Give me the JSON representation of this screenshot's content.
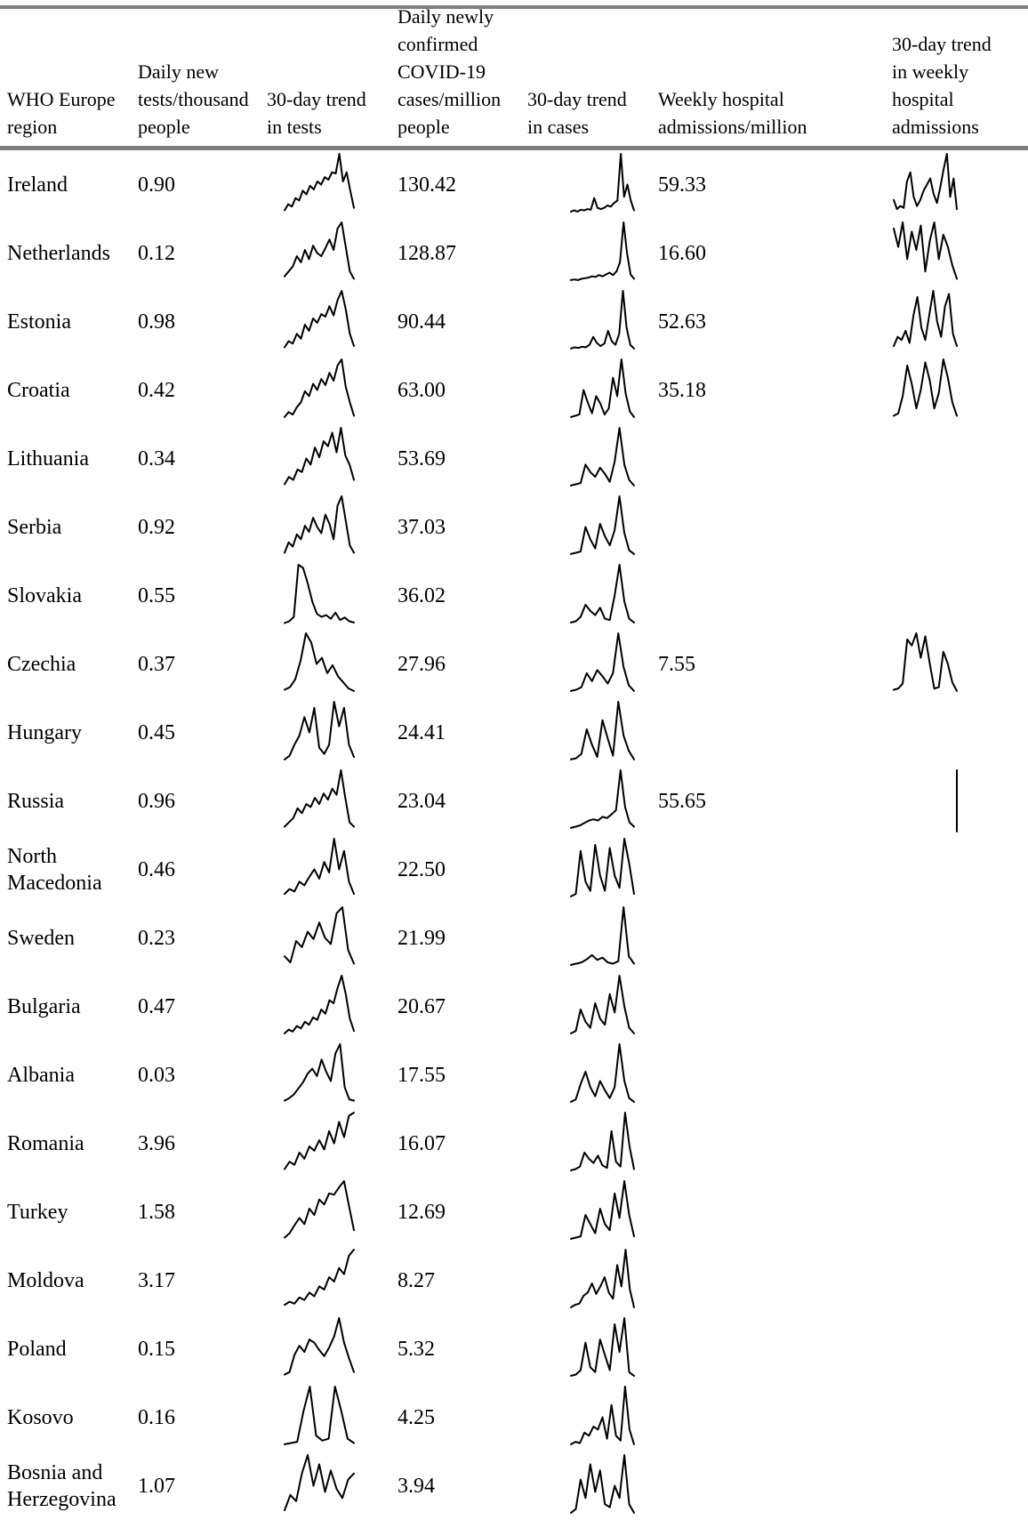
{
  "table": {
    "headers": {
      "region": "WHO Europe\nregion",
      "tests": "Daily new\ntests/thousand\npeople",
      "tests_trend": "30-day trend\nin tests",
      "cases": "Daily newly\nconfirmed\nCOVID-19\ncases/million\npeople",
      "cases_trend": "30-day trend\nin cases",
      "hosp": "Weekly hospital\nadmissions/million",
      "hosp_trend": "30-day trend\nin weekly\nhospital\nadmissions"
    },
    "rows": [
      {
        "region": "Ireland",
        "tests": "0.90",
        "cases": "130.42",
        "hosp": "59.33",
        "tests_trend": [
          8,
          18,
          14,
          28,
          24,
          40,
          34,
          48,
          42,
          55,
          50,
          62,
          58,
          70,
          68,
          100,
          55,
          70,
          40,
          12
        ],
        "cases_trend": [
          6,
          8,
          6,
          9,
          8,
          10,
          9,
          28,
          12,
          10,
          12,
          16,
          14,
          20,
          24,
          100,
          30,
          50,
          24,
          8
        ],
        "hosp_trend": [
          25,
          10,
          15,
          12,
          55,
          70,
          30,
          15,
          25,
          40,
          50,
          60,
          35,
          20,
          45,
          75,
          100,
          30,
          60,
          10
        ]
      },
      {
        "region": "Netherlands",
        "tests": "0.12",
        "cases": "128.87",
        "hosp": "16.60",
        "tests_trend": [
          12,
          20,
          28,
          45,
          35,
          55,
          40,
          62,
          50,
          45,
          58,
          72,
          55,
          90,
          100,
          60,
          20,
          8
        ],
        "cases_trend": [
          6,
          7,
          6,
          8,
          9,
          10,
          12,
          11,
          14,
          12,
          15,
          18,
          14,
          20,
          35,
          100,
          50,
          15,
          8
        ],
        "hosp_trend": [
          90,
          60,
          100,
          40,
          85,
          55,
          95,
          20,
          70,
          100,
          40,
          80,
          60,
          30,
          8
        ]
      },
      {
        "region": "Estonia",
        "tests": "0.98",
        "cases": "90.44",
        "hosp": "52.63",
        "tests_trend": [
          8,
          18,
          14,
          30,
          22,
          45,
          35,
          55,
          48,
          62,
          58,
          75,
          60,
          85,
          100,
          70,
          30,
          10
        ],
        "cases_trend": [
          6,
          8,
          7,
          9,
          8,
          12,
          25,
          15,
          10,
          14,
          35,
          18,
          12,
          30,
          100,
          40,
          12,
          6
        ],
        "hosp_trend": [
          10,
          25,
          20,
          35,
          15,
          60,
          90,
          40,
          20,
          60,
          100,
          50,
          25,
          75,
          95,
          30,
          10
        ]
      },
      {
        "region": "Croatia",
        "tests": "0.42",
        "cases": "63.00",
        "hosp": "35.18",
        "tests_trend": [
          6,
          14,
          10,
          22,
          30,
          48,
          40,
          60,
          50,
          68,
          58,
          78,
          65,
          90,
          100,
          55,
          30,
          8
        ],
        "cases_trend": [
          6,
          8,
          10,
          50,
          30,
          12,
          40,
          28,
          10,
          20,
          70,
          40,
          100,
          45,
          15,
          6
        ],
        "hosp_trend": [
          8,
          12,
          40,
          90,
          60,
          20,
          50,
          95,
          65,
          20,
          45,
          100,
          70,
          30,
          8
        ]
      },
      {
        "region": "Lithuania",
        "tests": "0.34",
        "cases": "53.69",
        "hosp": "",
        "tests_trend": [
          8,
          20,
          15,
          32,
          28,
          50,
          40,
          68,
          52,
          78,
          70,
          92,
          60,
          100,
          55,
          40,
          15
        ],
        "cases_trend": [
          6,
          8,
          10,
          40,
          28,
          20,
          35,
          25,
          12,
          45,
          100,
          40,
          15,
          6
        ],
        "hosp_trend": []
      },
      {
        "region": "Serbia",
        "tests": "0.92",
        "cases": "37.03",
        "hosp": "",
        "tests_trend": [
          8,
          25,
          18,
          38,
          30,
          52,
          42,
          65,
          50,
          40,
          70,
          55,
          30,
          85,
          100,
          60,
          20,
          8
        ],
        "cases_trend": [
          6,
          8,
          10,
          50,
          30,
          15,
          55,
          35,
          20,
          45,
          100,
          40,
          12,
          6
        ],
        "hosp_trend": []
      },
      {
        "region": "Slovakia",
        "tests": "0.55",
        "cases": "36.02",
        "hosp": "",
        "tests_trend": [
          5,
          8,
          15,
          100,
          95,
          70,
          40,
          20,
          15,
          18,
          12,
          22,
          10,
          14,
          8,
          6
        ],
        "cases_trend": [
          6,
          8,
          15,
          35,
          25,
          18,
          30,
          12,
          10,
          50,
          100,
          40,
          12,
          6
        ],
        "hosp_trend": []
      },
      {
        "region": "Czechia",
        "tests": "0.37",
        "cases": "27.96",
        "hosp": "7.55",
        "tests_trend": [
          8,
          12,
          25,
          55,
          100,
          85,
          50,
          60,
          35,
          48,
          30,
          20,
          10,
          6
        ],
        "cases_trend": [
          6,
          8,
          12,
          35,
          22,
          40,
          30,
          18,
          35,
          100,
          45,
          15,
          6
        ],
        "hosp_trend": [
          8,
          10,
          18,
          90,
          80,
          100,
          60,
          95,
          50,
          10,
          12,
          70,
          50,
          20,
          6
        ]
      },
      {
        "region": "Hungary",
        "tests": "0.45",
        "cases": "24.41",
        "hosp": "",
        "tests_trend": [
          6,
          12,
          30,
          45,
          75,
          50,
          90,
          25,
          15,
          30,
          100,
          60,
          90,
          30,
          10
        ],
        "cases_trend": [
          6,
          8,
          15,
          55,
          30,
          10,
          70,
          40,
          12,
          100,
          45,
          20,
          6
        ],
        "hosp_trend": []
      },
      {
        "region": "Russia",
        "tests": "0.96",
        "cases": "23.04",
        "hosp": "55.65",
        "tests_trend": [
          8,
          15,
          22,
          38,
          30,
          45,
          40,
          55,
          45,
          62,
          52,
          70,
          60,
          100,
          55,
          15,
          8
        ],
        "cases_trend": [
          6,
          8,
          10,
          14,
          18,
          20,
          18,
          24,
          22,
          28,
          35,
          100,
          40,
          15,
          8
        ],
        "hosp_trend": [
          100,
          0
        ]
      },
      {
        "region": "North\nMacedonia",
        "tests": "0.46",
        "cases": "22.50",
        "hosp": "",
        "tests_trend": [
          10,
          18,
          14,
          30,
          24,
          38,
          50,
          35,
          62,
          45,
          100,
          50,
          80,
          30,
          10
        ],
        "cases_trend": [
          6,
          10,
          80,
          30,
          15,
          90,
          40,
          15,
          85,
          40,
          20,
          100,
          60,
          10
        ],
        "hosp_trend": []
      },
      {
        "region": "Sweden",
        "tests": "0.23",
        "cases": "21.99",
        "hosp": "",
        "tests_trend": [
          20,
          10,
          45,
          35,
          60,
          48,
          75,
          50,
          40,
          90,
          100,
          30,
          8
        ],
        "cases_trend": [
          6,
          8,
          10,
          15,
          22,
          14,
          18,
          10,
          8,
          12,
          100,
          20,
          8
        ],
        "hosp_trend": []
      },
      {
        "region": "Bulgaria",
        "tests": "0.47",
        "cases": "20.67",
        "hosp": "",
        "tests_trend": [
          6,
          12,
          9,
          18,
          14,
          25,
          20,
          32,
          28,
          45,
          38,
          60,
          55,
          80,
          100,
          70,
          30,
          10
        ],
        "cases_trend": [
          6,
          10,
          45,
          25,
          15,
          55,
          30,
          20,
          70,
          40,
          100,
          50,
          15,
          6
        ],
        "hosp_trend": []
      },
      {
        "region": "Albania",
        "tests": "0.03",
        "cases": "17.55",
        "hosp": "",
        "tests_trend": [
          8,
          12,
          18,
          28,
          38,
          52,
          60,
          48,
          75,
          55,
          40,
          85,
          100,
          30,
          10,
          8
        ],
        "cases_trend": [
          6,
          10,
          35,
          55,
          30,
          15,
          40,
          25,
          12,
          30,
          100,
          40,
          12,
          6
        ],
        "hosp_trend": []
      },
      {
        "region": "Romania",
        "tests": "3.96",
        "cases": "16.07",
        "hosp": "",
        "tests_trend": [
          8,
          20,
          15,
          35,
          25,
          45,
          38,
          55,
          40,
          70,
          50,
          85,
          60,
          95,
          100
        ],
        "cases_trend": [
          6,
          8,
          12,
          35,
          25,
          18,
          30,
          14,
          10,
          70,
          20,
          12,
          100,
          45,
          8
        ],
        "hosp_trend": []
      },
      {
        "region": "Turkey",
        "tests": "1.58",
        "cases": "12.69",
        "hosp": "",
        "tests_trend": [
          8,
          15,
          28,
          40,
          30,
          55,
          45,
          70,
          62,
          80,
          78,
          90,
          100,
          60,
          20
        ],
        "cases_trend": [
          6,
          8,
          10,
          45,
          30,
          15,
          55,
          30,
          20,
          80,
          40,
          100,
          45,
          10
        ],
        "hosp_trend": []
      },
      {
        "region": "Moldova",
        "tests": "3.17",
        "cases": "8.27",
        "hosp": "",
        "tests_trend": [
          10,
          15,
          12,
          22,
          18,
          30,
          24,
          40,
          35,
          55,
          48,
          70,
          60,
          90,
          100
        ],
        "cases_trend": [
          6,
          10,
          12,
          25,
          30,
          45,
          28,
          40,
          55,
          30,
          20,
          75,
          40,
          100,
          35,
          6
        ],
        "hosp_trend": []
      },
      {
        "region": "Poland",
        "tests": "0.15",
        "cases": "5.32",
        "hosp": "",
        "tests_trend": [
          8,
          12,
          40,
          55,
          45,
          65,
          60,
          48,
          38,
          52,
          70,
          100,
          60,
          35,
          12
        ],
        "cases_trend": [
          6,
          8,
          15,
          60,
          20,
          12,
          65,
          40,
          15,
          90,
          45,
          100,
          12,
          6
        ],
        "hosp_trend": []
      },
      {
        "region": "Kosovo",
        "tests": "0.16",
        "cases": "4.25",
        "hosp": "",
        "tests_trend": [
          6,
          8,
          10,
          60,
          100,
          20,
          12,
          15,
          100,
          60,
          15,
          8
        ],
        "cases_trend": [
          6,
          10,
          8,
          25,
          20,
          35,
          30,
          50,
          15,
          70,
          20,
          12,
          100,
          30,
          6
        ],
        "hosp_trend": []
      },
      {
        "region": "Bosnia and\nHerzegovina",
        "tests": "1.07",
        "cases": "3.94",
        "hosp": "",
        "tests_trend": [
          10,
          35,
          25,
          70,
          100,
          50,
          85,
          40,
          75,
          45,
          30,
          60,
          70
        ],
        "cases_trend": [
          6,
          12,
          60,
          30,
          85,
          40,
          75,
          20,
          15,
          50,
          30,
          100,
          20,
          6
        ],
        "hosp_trend": []
      }
    ]
  }
}
